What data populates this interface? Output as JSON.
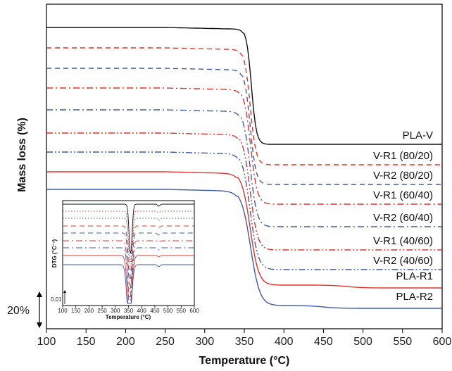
{
  "chart_data": [
    {
      "type": "line",
      "xlabel": "Temperature (°C)",
      "ylabel": "Mass loss (%)",
      "xlim": [
        100,
        600
      ],
      "xticks": [
        100,
        150,
        200,
        250,
        300,
        350,
        400,
        450,
        500,
        550,
        600
      ],
      "scale_bar_label": "20%",
      "scale_bar_value": 20,
      "series": [
        {
          "name": "PLA-V",
          "color": "#111111",
          "dash": "solid",
          "onset": 350,
          "end": 368,
          "plateau_start": 100,
          "plateau_end": 26,
          "y_offset": 0,
          "shoulder": 475,
          "shoulder_drop": 0
        },
        {
          "name": "V-R1 (80/20)",
          "color": "#e0342a",
          "dash": "dash",
          "onset": 347,
          "end": 368,
          "plateau_start": 100,
          "plateau_end": 26,
          "y_offset": -2,
          "shoulder": 480,
          "shoulder_drop": 0
        },
        {
          "name": "V-R2 (80/20)",
          "color": "#3f5aa8",
          "dash": "dash",
          "onset": 347,
          "end": 368,
          "plateau_start": 100,
          "plateau_end": 26,
          "y_offset": -4,
          "shoulder": 480,
          "shoulder_drop": 0
        },
        {
          "name": "V-R1 (60/40)",
          "color": "#e0342a",
          "dash": "dashdot",
          "onset": 346,
          "end": 370,
          "plateau_start": 100,
          "plateau_end": 26,
          "y_offset": -6,
          "shoulder": 480,
          "shoulder_drop": 0
        },
        {
          "name": "V-R2 (60/40)",
          "color": "#3f5aa8",
          "dash": "dashdot",
          "onset": 345,
          "end": 370,
          "plateau_start": 100,
          "plateau_end": 26,
          "y_offset": -8,
          "shoulder": 480,
          "shoulder_drop": 0
        },
        {
          "name": "V-R1 (40/60)",
          "color": "#e0342a",
          "dash": "dashdotdot",
          "onset": 344,
          "end": 371,
          "plateau_start": 100,
          "plateau_end": 26,
          "y_offset": -10,
          "shoulder": 480,
          "shoulder_drop": 0
        },
        {
          "name": "V-R2 (40/60)",
          "color": "#3f5aa8",
          "dash": "dashdotdot",
          "onset": 343,
          "end": 372,
          "plateau_start": 100,
          "plateau_end": 26,
          "y_offset": -12,
          "shoulder": 480,
          "shoulder_drop": 0
        },
        {
          "name": "PLA-R1",
          "color": "#e0342a",
          "dash": "solid",
          "onset": 342,
          "end": 373,
          "plateau_start": 100,
          "plateau_end": 26,
          "y_offset": -14,
          "shoulder": 480,
          "shoulder_drop": 1
        },
        {
          "name": "PLA-R2",
          "color": "#3f5aa8",
          "dash": "solid",
          "onset": 341,
          "end": 375,
          "plateau_start": 100,
          "plateau_end": 26,
          "y_offset": -16,
          "shoulder": 450,
          "shoulder_drop": 1
        }
      ]
    },
    {
      "type": "line",
      "xlabel": "Temperature (°C)",
      "ylabel": "DTG (°C⁻¹)",
      "xlim": [
        100,
        600
      ],
      "xticks": [
        100,
        150,
        200,
        250,
        300,
        350,
        400,
        450,
        500,
        550,
        600
      ],
      "scale_bar_label": "0.01",
      "series": [
        {
          "color": "#111111",
          "dash": "solid",
          "peak": 358,
          "depth": 0.6,
          "width": 8
        },
        {
          "color": "#e0342a",
          "dash": "dot",
          "peak": 357,
          "depth": 0.65,
          "width": 9
        },
        {
          "color": "#3f5aa8",
          "dash": "dot",
          "peak": 357,
          "depth": 0.7,
          "width": 9
        },
        {
          "color": "#e0342a",
          "dash": "dash",
          "peak": 356,
          "depth": 0.75,
          "width": 10
        },
        {
          "color": "#3f5aa8",
          "dash": "dash",
          "peak": 356,
          "depth": 0.8,
          "width": 10
        },
        {
          "color": "#e0342a",
          "dash": "dashdot",
          "peak": 355,
          "depth": 0.85,
          "width": 11
        },
        {
          "color": "#3f5aa8",
          "dash": "dashdot",
          "peak": 355,
          "depth": 0.9,
          "width": 11
        },
        {
          "color": "#e0342a",
          "dash": "solid",
          "peak": 354,
          "depth": 0.95,
          "width": 12
        },
        {
          "color": "#3f5aa8",
          "dash": "solid",
          "peak": 353,
          "depth": 1.0,
          "width": 12
        }
      ]
    }
  ]
}
